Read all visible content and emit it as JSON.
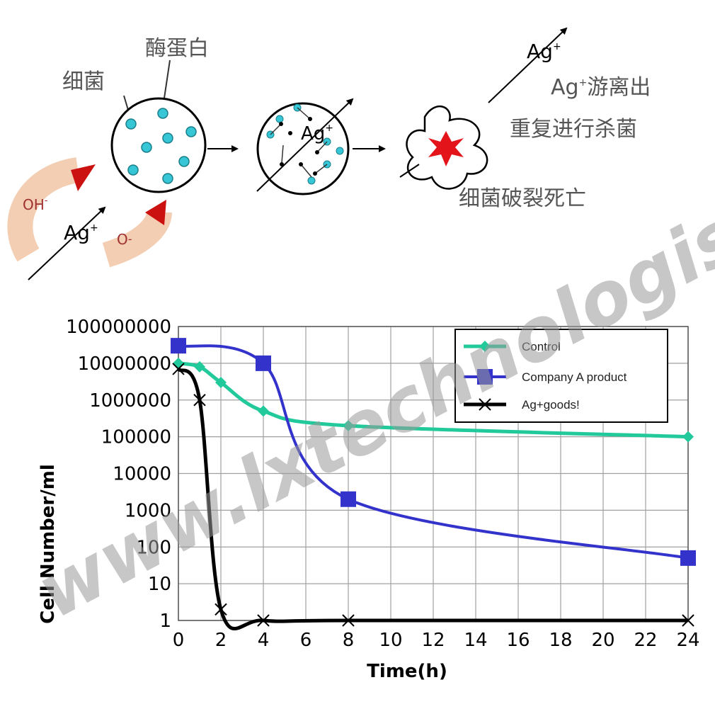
{
  "diagram": {
    "label_enzyme": "酶蛋白",
    "label_bacteria": "细菌",
    "label_ag1": "Ag",
    "label_ag2": "Ag",
    "label_ag3": "Ag",
    "label_ag4": "Ag",
    "label_plus": "+",
    "label_oh": "OH",
    "label_o": "O",
    "label_minus": "-",
    "label_release": "Ag",
    "label_release_rest": "游离出",
    "label_repeat": "重复进行杀菌",
    "label_burst": "细菌破裂死亡"
  },
  "watermark": "www.lxtechnologist.com",
  "colors": {
    "control": "#22c99a",
    "company_a": "#3333cc",
    "ag_goods": "#000000",
    "grid": "#a0a0a0",
    "dots": "#36c6d6",
    "arrow_red": "#d11a1a"
  },
  "chart_data": {
    "type": "line",
    "x_scale": "linear",
    "y_scale": "log",
    "xlabel": "Time(h)",
    "ylabel": "Cell Number/ml",
    "xlim": [
      0,
      24
    ],
    "ylim": [
      1,
      100000000
    ],
    "x_ticks": [
      "0",
      "2",
      "4",
      "6",
      "8",
      "10",
      "12",
      "14",
      "16",
      "18",
      "20",
      "22",
      "24"
    ],
    "y_ticks": [
      "1",
      "10",
      "100",
      "1000",
      "10000",
      "100000",
      "1000000",
      "10000000",
      "100000000"
    ],
    "legend_position": "top-right",
    "grid": true,
    "series": [
      {
        "name": "Control",
        "marker": "diamond",
        "x": [
          0,
          1,
          2,
          4,
          8,
          24
        ],
        "y": [
          10000000,
          8000000,
          3000000,
          500000,
          200000,
          100000
        ]
      },
      {
        "name": "Company A product",
        "marker": "square",
        "x": [
          0,
          4,
          8,
          24
        ],
        "y": [
          30000000,
          10000000,
          2000,
          50
        ]
      },
      {
        "name": "Ag+goods!",
        "marker": "x",
        "x": [
          0,
          1,
          2,
          4,
          8,
          24
        ],
        "y": [
          7000000,
          1000000,
          2,
          1,
          1,
          1
        ]
      }
    ]
  }
}
